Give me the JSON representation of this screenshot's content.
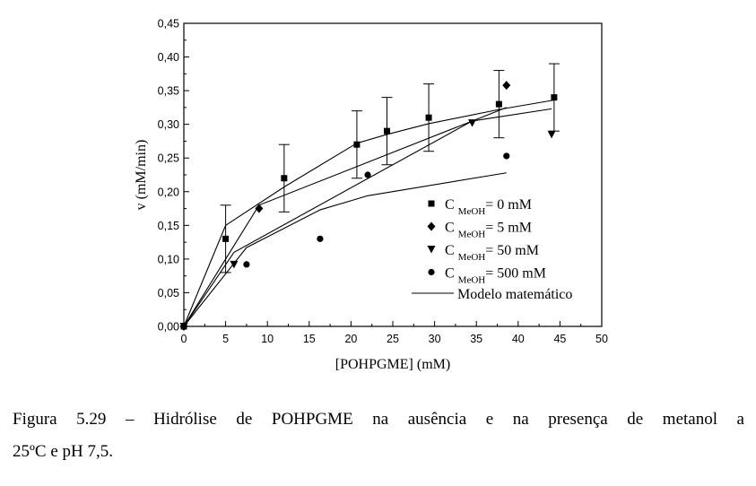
{
  "chart_data": {
    "type": "scatter",
    "xlabel": "[POHPGME] (mM)",
    "ylabel": "v (mM/min)",
    "xlim": [
      0,
      50
    ],
    "ylim": [
      0,
      0.45
    ],
    "x_ticks": [
      "0",
      "5",
      "10",
      "15",
      "20",
      "25",
      "30",
      "35",
      "40",
      "45",
      "50"
    ],
    "y_ticks": [
      "0,00",
      "0,05",
      "0,10",
      "0,15",
      "0,20",
      "0,25",
      "0,30",
      "0,35",
      "0,40",
      "0,45"
    ],
    "grid": false,
    "legend_placement": "lower-right",
    "series": [
      {
        "name": "C MeOH= 0 mM",
        "name_main": "C ",
        "name_sub": "MeOH",
        "name_tail": "= 0 mM",
        "marker": "square",
        "x": [
          0,
          5,
          12,
          20.7,
          24.3,
          29.3,
          37.7,
          44.3
        ],
        "y": [
          0,
          0.13,
          0.22,
          0.27,
          0.29,
          0.31,
          0.33,
          0.34
        ],
        "error": [
          0,
          0.05,
          0.05,
          0.05,
          0.05,
          0.05,
          0.05,
          0.05
        ],
        "fit_x": [
          0,
          5,
          12,
          20.7,
          24.3,
          29.3,
          37.7,
          44.3
        ],
        "fit_y": [
          0,
          0.15,
          0.207,
          0.272,
          0.285,
          0.301,
          0.322,
          0.336
        ]
      },
      {
        "name": "C MeOH= 5 mM",
        "name_main": "C ",
        "name_sub": "MeOH",
        "name_tail": "= 5 mM",
        "marker": "diamond",
        "x": [
          0,
          9,
          38.6
        ],
        "y": [
          0,
          0.175,
          0.358
        ],
        "fit_x": [
          0,
          9,
          38.6
        ],
        "fit_y": [
          0,
          0.18,
          0.325
        ]
      },
      {
        "name": "C MeOH= 50 mM",
        "name_main": "C ",
        "name_sub": "MeOH",
        "name_tail": "= 50 mM",
        "marker": "triangle-down",
        "x": [
          0,
          6,
          34.5,
          44
        ],
        "y": [
          0,
          0.092,
          0.302,
          0.285
        ],
        "fit_x": [
          0,
          6,
          34.5,
          44
        ],
        "fit_y": [
          0,
          0.11,
          0.305,
          0.323
        ]
      },
      {
        "name": "C MeOH= 500 mM",
        "name_main": "C ",
        "name_sub": "MeOH",
        "name_tail": "= 500 mM",
        "marker": "circle",
        "x": [
          0,
          7.5,
          16.3,
          22,
          38.6
        ],
        "y": [
          0,
          0.092,
          0.13,
          0.225,
          0.253
        ],
        "fit_x": [
          0,
          7.5,
          16.3,
          22,
          38.6
        ],
        "fit_y": [
          0,
          0.117,
          0.173,
          0.194,
          0.228
        ]
      }
    ],
    "model_legend": "Modelo matemático"
  },
  "caption": {
    "line1": "Figura 5.29 – Hidrólise de POHPGME na ausência e na presença de metanol a",
    "line2": "25ºC e pH 7,5."
  }
}
